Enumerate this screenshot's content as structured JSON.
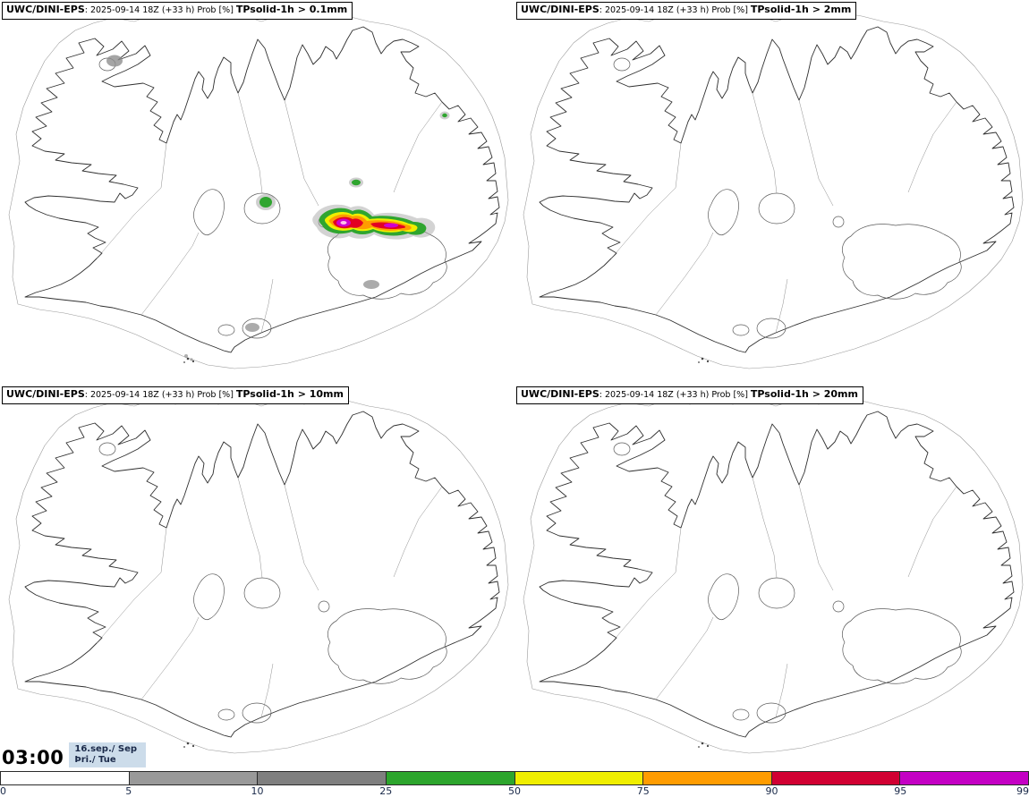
{
  "panels": [
    {
      "title_prefix": "UWC/DINI-EPS",
      "title_meta": ": 2025-09-14 18Z (+33 h) Prob [%] ",
      "threshold": "TPsolid-1h > 0.1mm"
    },
    {
      "title_prefix": "UWC/DINI-EPS",
      "title_meta": ": 2025-09-14 18Z (+33 h) Prob [%] ",
      "threshold": "TPsolid-1h > 2mm"
    },
    {
      "title_prefix": "UWC/DINI-EPS",
      "title_meta": ": 2025-09-14 18Z (+33 h) Prob [%] ",
      "threshold": "TPsolid-1h > 10mm"
    },
    {
      "title_prefix": "UWC/DINI-EPS",
      "title_meta": ": 2025-09-14 18Z (+33 h) Prob [%] ",
      "threshold": "TPsolid-1h > 20mm"
    }
  ],
  "footer": {
    "time": "03:00",
    "date_line1": "16.sep./ Sep",
    "date_line2": "Þri./ Tue"
  },
  "colorbar": {
    "labels": [
      "0",
      "5",
      "10",
      "25",
      "50",
      "75",
      "90",
      "95",
      "99"
    ],
    "segments": [
      {
        "from": "0",
        "to": "5",
        "color": "#ffffff"
      },
      {
        "from": "5",
        "to": "10",
        "color": "#999999"
      },
      {
        "from": "10",
        "to": "25",
        "color": "#7f7f7f"
      },
      {
        "from": "25",
        "to": "50",
        "color": "#2da52d"
      },
      {
        "from": "50",
        "to": "75",
        "color": "#f0ee00"
      },
      {
        "from": "75",
        "to": "90",
        "color": "#ff9c00"
      },
      {
        "from": "90",
        "to": "95",
        "color": "#d10032"
      },
      {
        "from": "95",
        "to": "99",
        "color": "#c400c4"
      }
    ]
  },
  "overlay": {
    "fringe_gray": "#a8a8a8",
    "spot_gray": "#8f8f8f",
    "green": "#2fa52f",
    "yellow": "#f0ee00",
    "orange": "#ff9c00",
    "red": "#e30022",
    "magenta": "#cf00cf",
    "pink": "#ffc0ea"
  }
}
